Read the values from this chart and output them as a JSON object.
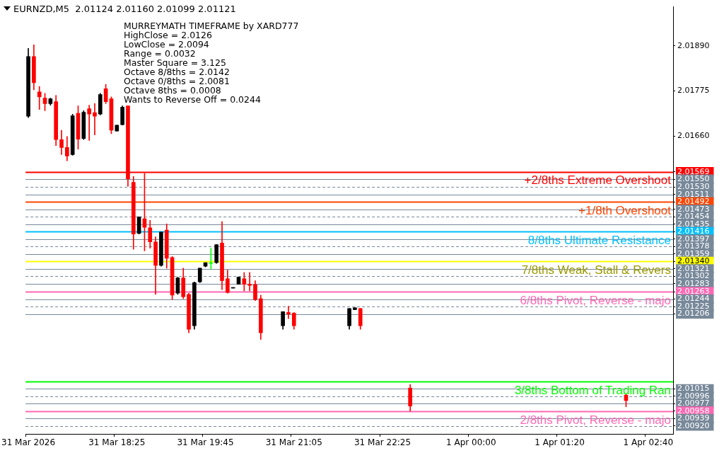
{
  "chart_data": {
    "type": "candlestick",
    "title": "EURNZD,M5  2.01124 2.01160 2.01099 2.01121",
    "annotations": [
      "MURREYMATH TIMEFRAME by XARD777",
      "HighClose = 2.0126",
      "LowClose = 2.0094",
      "Range = 0.0032",
      "Master Square = 3.125",
      "Octave 8/8ths = 2.0142",
      "Octave 0/8ths = 2.0081",
      "Octave 8ths = 0.0008",
      "Wants to Reverse Off = 0.0244"
    ],
    "categories": [
      "31 Mar 2026",
      null,
      null,
      null,
      null,
      null,
      null,
      null,
      null,
      null,
      null,
      null,
      null,
      null,
      null,
      null,
      "31 Mar 18:25",
      null,
      null,
      null,
      null,
      null,
      null,
      null,
      null,
      null,
      null,
      null,
      null,
      null,
      null,
      null,
      "31 Mar 19:45",
      null,
      null,
      null,
      null,
      null,
      null,
      null,
      null,
      null,
      null,
      null,
      null,
      null,
      null,
      null,
      "31 Mar 21:05",
      null,
      null,
      null,
      null,
      null,
      null,
      null,
      null,
      null,
      null,
      null,
      null,
      null,
      null,
      null,
      "31 Mar 22:25",
      null,
      null,
      null,
      null,
      null,
      null,
      null,
      null,
      null,
      null,
      null,
      null,
      null,
      null,
      null,
      "1 Apr 00:00",
      null,
      null,
      null,
      null,
      null,
      null,
      null,
      null,
      null,
      null,
      null,
      null,
      null,
      null,
      null,
      "1 Apr 01:20",
      null,
      null,
      null,
      null,
      null,
      null,
      null,
      null,
      null,
      null,
      null,
      null,
      null,
      null,
      null,
      "1 Apr 02:40",
      null,
      null,
      null,
      null
    ],
    "ohlc": [
      [
        2.01711,
        2.01884,
        2.01707,
        2.01863
      ],
      [
        2.01863,
        2.01893,
        2.01778,
        2.01796
      ],
      [
        2.01773,
        2.01787,
        2.01728,
        2.0176
      ],
      [
        2.01757,
        2.01769,
        2.01725,
        2.01743
      ],
      [
        2.01743,
        2.01757,
        2.01739,
        2.01755
      ],
      [
        2.01748,
        2.01764,
        2.01636,
        2.01651
      ],
      [
        2.01651,
        2.01675,
        2.01613,
        2.01631
      ],
      [
        2.01631,
        2.01659,
        2.01597,
        2.01609
      ],
      [
        2.01613,
        2.01716,
        2.01611,
        2.01712
      ],
      [
        2.01718,
        2.01737,
        2.01627,
        2.01652
      ],
      [
        2.01654,
        2.01725,
        2.01651,
        2.01721
      ],
      [
        2.0173,
        2.01739,
        2.01649,
        2.01716
      ],
      [
        2.0172,
        2.01743,
        2.01663,
        2.01711
      ],
      [
        2.01716,
        2.01769,
        2.01714,
        2.01766
      ],
      [
        2.01781,
        2.01792,
        2.01743,
        2.01748
      ],
      [
        2.01755,
        2.0176,
        2.01666,
        2.01675
      ],
      [
        2.01673,
        2.01688,
        2.01673,
        2.01688
      ],
      [
        2.01689,
        2.01737,
        2.01688,
        2.01734
      ],
      [
        2.01737,
        2.01737,
        2.01532,
        2.01551
      ],
      [
        2.01542,
        2.01557,
        2.01371,
        2.0141
      ],
      [
        2.01412,
        2.01454,
        2.0141,
        2.01454
      ],
      [
        2.01449,
        2.01565,
        2.01367,
        2.01427
      ],
      [
        2.01426,
        2.01445,
        2.01374,
        2.0139
      ],
      [
        2.0139,
        2.01403,
        2.01256,
        2.0133
      ],
      [
        2.0133,
        2.01415,
        2.01328,
        2.01415
      ],
      [
        2.0142,
        2.01436,
        2.01323,
        2.01348
      ],
      [
        2.0135,
        2.01353,
        2.01243,
        2.01254
      ],
      [
        2.01259,
        2.013,
        2.01256,
        2.01298
      ],
      [
        2.01298,
        2.01323,
        2.01245,
        2.0125
      ],
      [
        2.01256,
        2.01259,
        2.01158,
        2.01167
      ],
      [
        2.01176,
        2.01288,
        2.01167,
        2.01286
      ],
      [
        2.01288,
        2.01323,
        2.01286,
        2.01323
      ],
      [
        2.01328,
        2.01337,
        2.01326,
        2.01337
      ],
      [
        2.01335,
        2.01374,
        2.01321,
        2.01335
      ],
      [
        2.01337,
        2.01383,
        2.01335,
        2.01383
      ],
      [
        2.01387,
        2.01442,
        2.01268,
        2.01291
      ],
      [
        2.01296,
        2.01318,
        2.01259,
        2.01261
      ],
      [
        2.01272,
        2.01273,
        2.01272,
        2.01272
      ],
      [
        2.01282,
        2.013,
        2.01282,
        2.013
      ],
      [
        2.01296,
        2.01312,
        2.01265,
        2.01282
      ],
      [
        2.01282,
        2.01312,
        2.01265,
        2.01279
      ],
      [
        2.01281,
        2.01291,
        2.0124,
        2.01243
      ],
      [
        2.01245,
        2.01254,
        2.01141,
        2.01158
      ],
      null,
      null,
      null,
      [
        2.01176,
        2.01212,
        2.01167,
        2.01212
      ],
      [
        2.0121,
        2.01226,
        2.01194,
        2.01206
      ],
      [
        2.01208,
        2.0121,
        2.01167,
        2.01176
      ],
      null,
      null,
      null,
      null,
      null,
      null,
      null,
      null,
      null,
      [
        2.01176,
        2.0122,
        2.01167,
        2.0122
      ],
      [
        2.01217,
        2.01222,
        2.01217,
        2.01222
      ],
      [
        2.0122,
        2.0122,
        2.01167,
        2.01176
      ],
      null,
      null,
      null,
      null,
      null,
      null,
      null,
      null,
      [
        2.01017,
        2.01026,
        2.00958,
        2.00971
      ],
      null,
      null,
      null,
      null,
      null,
      null,
      null,
      null,
      null,
      null,
      null,
      null,
      null,
      null,
      null,
      null,
      null,
      null,
      null,
      null,
      null,
      null,
      null,
      null,
      null,
      null,
      null,
      null,
      null,
      null,
      null,
      null,
      null,
      null,
      null,
      null,
      null,
      null,
      [
        2.00999,
        2.01003,
        2.00969,
        2.00985
      ],
      null,
      null,
      null,
      null,
      null,
      null,
      null,
      null
    ],
    "colors": [
      "#000000",
      "#ff0000",
      "#ff0000",
      "#ff0000",
      "#000000",
      "#ff0000",
      "#ff0000",
      "#ff0000",
      "#000000",
      "#ff0000",
      "#000000",
      "#ff0000",
      "#ff0000",
      "#000000",
      "#ff0000",
      "#ff0000",
      "#000000",
      "#000000",
      "#ff0000",
      "#ff0000",
      "#000000",
      "#ff0000",
      "#ff0000",
      "#ff0000",
      "#000000",
      "#ff0000",
      "#ff0000",
      "#000000",
      "#ff0000",
      "#ff0000",
      "#000000",
      "#000000",
      "#000000",
      "#00ff00",
      "#000000",
      "#ff0000",
      "#ff0000",
      "#000000",
      "#000000",
      "#ff0000",
      "#ff0000",
      "#ff0000",
      "#ff0000",
      null,
      null,
      null,
      "#000000",
      "#ff0000",
      "#ff0000",
      null,
      null,
      null,
      null,
      null,
      null,
      null,
      null,
      null,
      "#000000",
      "#000000",
      "#ff0000",
      null,
      null,
      null,
      null,
      null,
      null,
      null,
      null,
      "#ff0000",
      null,
      null,
      null,
      null,
      null,
      null,
      null,
      null,
      null,
      null,
      null,
      null,
      null,
      null,
      null,
      null,
      null,
      null,
      null,
      null,
      null,
      null,
      null,
      null,
      null,
      null,
      null,
      null,
      null,
      null,
      null,
      null,
      null,
      null,
      null,
      null,
      null,
      null,
      "#ff0000",
      null,
      null,
      null,
      null,
      null,
      null,
      null,
      null
    ],
    "ylim": [
      2.009,
      2.0199
    ],
    "yticks": [
      {
        "value": 2.0189,
        "label": "2.01890"
      },
      {
        "value": 2.01775,
        "label": "2.01775"
      },
      {
        "value": 2.0166,
        "label": "2.01660"
      },
      {
        "value": 2.01569,
        "label": "2.01569"
      },
      {
        "value": 2.0155,
        "label": "2.01550"
      },
      {
        "value": 2.0153,
        "label": "2.01530"
      },
      {
        "value": 2.01511,
        "label": "2.01511"
      },
      {
        "value": 2.01492,
        "label": "2.01492"
      },
      {
        "value": 2.01473,
        "label": "2.01473"
      },
      {
        "value": 2.01454,
        "label": "2.01454"
      },
      {
        "value": 2.01435,
        "label": "2.01435"
      },
      {
        "value": 2.01416,
        "label": "2.01416"
      },
      {
        "value": 2.01397,
        "label": "2.01397"
      },
      {
        "value": 2.01378,
        "label": "2.01378"
      },
      {
        "value": 2.01359,
        "label": "2.01359"
      },
      {
        "value": 2.0134,
        "label": "2.01340"
      },
      {
        "value": 2.01321,
        "label": "2.01321"
      },
      {
        "value": 2.01302,
        "label": "2.01302"
      },
      {
        "value": 2.01283,
        "label": "2.01283"
      },
      {
        "value": 2.01263,
        "label": "2.01263"
      },
      {
        "value": 2.01244,
        "label": "2.01244"
      },
      {
        "value": 2.01225,
        "label": "2.01225"
      },
      {
        "value": 2.01206,
        "label": "2.01206"
      },
      {
        "value": 2.01015,
        "label": "2.01015"
      },
      {
        "value": 2.00996,
        "label": "2.00996"
      },
      {
        "value": 2.00977,
        "label": "2.00977"
      },
      {
        "value": 2.00958,
        "label": "2.00958"
      },
      {
        "value": 2.00939,
        "label": "2.00939"
      },
      {
        "value": 2.0092,
        "label": "2.00920"
      }
    ],
    "ref_lines": [
      {
        "axis": "y",
        "value": 2.01569,
        "label": "+2/8ths Extreme Overshoot",
        "color": "#ff0000"
      },
      {
        "axis": "y",
        "value": 2.0155,
        "color": "#778899"
      },
      {
        "axis": "y",
        "value": 2.0153,
        "color": "#778899",
        "line_style": "dashed"
      },
      {
        "axis": "y",
        "value": 2.01511,
        "color": "#778899"
      },
      {
        "axis": "y",
        "value": 2.01492,
        "label": "+1/8th Overshoot",
        "color": "#ff4500"
      },
      {
        "axis": "y",
        "value": 2.01473,
        "color": "#778899"
      },
      {
        "axis": "y",
        "value": 2.01454,
        "color": "#778899",
        "line_style": "dashed"
      },
      {
        "axis": "y",
        "value": 2.01435,
        "color": "#778899"
      },
      {
        "axis": "y",
        "value": 2.01416,
        "label": "8/8ths Ultimate Resistance",
        "color": "#00bfff"
      },
      {
        "axis": "y",
        "value": 2.01397,
        "color": "#778899"
      },
      {
        "axis": "y",
        "value": 2.01378,
        "color": "#778899",
        "line_style": "dashed"
      },
      {
        "axis": "y",
        "value": 2.01359,
        "color": "#778899"
      },
      {
        "axis": "y",
        "value": 2.0134,
        "label": "7/8ths Weak, Stall & Revers",
        "color": "#ffff00"
      },
      {
        "axis": "y",
        "value": 2.01321,
        "color": "#778899"
      },
      {
        "axis": "y",
        "value": 2.01302,
        "color": "#778899",
        "line_style": "dashed"
      },
      {
        "axis": "y",
        "value": 2.01283,
        "color": "#778899"
      },
      {
        "axis": "y",
        "value": 2.01263,
        "label": "6/8ths Pivot, Reverse - majo",
        "color": "#ff69b4"
      },
      {
        "axis": "y",
        "value": 2.01244,
        "color": "#778899"
      },
      {
        "axis": "y",
        "value": 2.01225,
        "color": "#778899",
        "line_style": "dashed"
      },
      {
        "axis": "y",
        "value": 2.01206,
        "color": "#778899"
      },
      {
        "axis": "y",
        "value": 2.01034,
        "label": "3/8ths Bottom of Trading Ran",
        "color": "#00ff00"
      },
      {
        "axis": "y",
        "value": 2.01015,
        "color": "#778899"
      },
      {
        "axis": "y",
        "value": 2.00996,
        "color": "#778899",
        "line_style": "dashed"
      },
      {
        "axis": "y",
        "value": 2.00977,
        "color": "#778899"
      },
      {
        "axis": "y",
        "value": 2.00958,
        "label": "2/8ths Pivot, Reverse - majo",
        "color": "#ff69b4"
      },
      {
        "axis": "y",
        "value": 2.00939,
        "color": "#778899"
      },
      {
        "axis": "y",
        "value": 2.0092,
        "color": "#778899",
        "line_style": "dashed"
      }
    ]
  }
}
